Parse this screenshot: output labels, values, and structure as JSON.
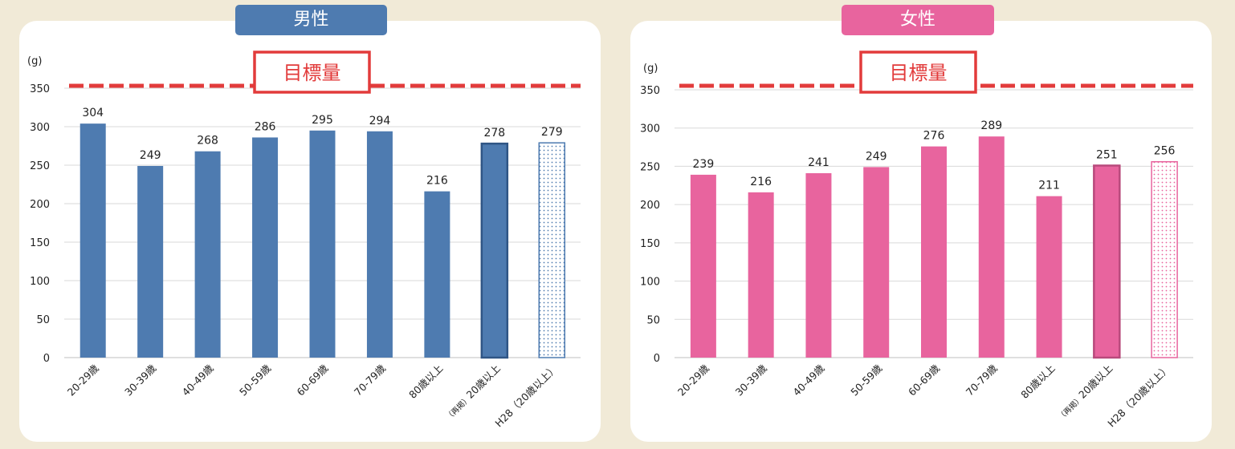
{
  "chart_data": [
    {
      "type": "bar",
      "title": "男性",
      "ylabel": "(g)",
      "ylim": [
        0,
        350
      ],
      "yticks": [
        0,
        50,
        100,
        150,
        200,
        250,
        300,
        350
      ],
      "grid": true,
      "categories": [
        {
          "prefix": "",
          "text": "20-29歳"
        },
        {
          "prefix": "",
          "text": "30-39歳"
        },
        {
          "prefix": "",
          "text": "40-49歳"
        },
        {
          "prefix": "",
          "text": "50-59歳"
        },
        {
          "prefix": "",
          "text": "60-69歳"
        },
        {
          "prefix": "",
          "text": "70-79歳"
        },
        {
          "prefix": "",
          "text": "80歳以上"
        },
        {
          "prefix": "（再掲）",
          "text": "20歳以上"
        },
        {
          "prefix": "",
          "text": "H28（20歳以上）"
        }
      ],
      "values": [
        304,
        249,
        268,
        286,
        295,
        294,
        216,
        278,
        279
      ],
      "bar_styles": [
        "solid",
        "solid",
        "solid",
        "solid",
        "solid",
        "solid",
        "solid",
        "outlined",
        "dotted"
      ],
      "target": {
        "label": "目標量",
        "value": 350
      },
      "colors": {
        "bar": "#4e7bb0",
        "bar_outline": "#2f5585",
        "header": "#4e7bb0",
        "target": "#e23b3b"
      }
    },
    {
      "type": "bar",
      "title": "女性",
      "ylabel": "(g)",
      "ylim": [
        0,
        350
      ],
      "yticks": [
        0,
        50,
        100,
        150,
        200,
        250,
        300,
        350
      ],
      "grid": true,
      "categories": [
        {
          "prefix": "",
          "text": "20-29歳"
        },
        {
          "prefix": "",
          "text": "30-39歳"
        },
        {
          "prefix": "",
          "text": "40-49歳"
        },
        {
          "prefix": "",
          "text": "50-59歳"
        },
        {
          "prefix": "",
          "text": "60-69歳"
        },
        {
          "prefix": "",
          "text": "70-79歳"
        },
        {
          "prefix": "",
          "text": "80歳以上"
        },
        {
          "prefix": "（再掲）",
          "text": "20歳以上"
        },
        {
          "prefix": "",
          "text": "H28（20歳以上）"
        }
      ],
      "values": [
        239,
        216,
        241,
        249,
        276,
        289,
        211,
        251,
        256
      ],
      "bar_styles": [
        "solid",
        "solid",
        "solid",
        "solid",
        "solid",
        "solid",
        "solid",
        "outlined",
        "dotted"
      ],
      "target": {
        "label": "目標量",
        "value": 350
      },
      "colors": {
        "bar": "#e8649e",
        "bar_outline": "#b84a7c",
        "header": "#e8649e",
        "target": "#e23b3b"
      }
    }
  ]
}
